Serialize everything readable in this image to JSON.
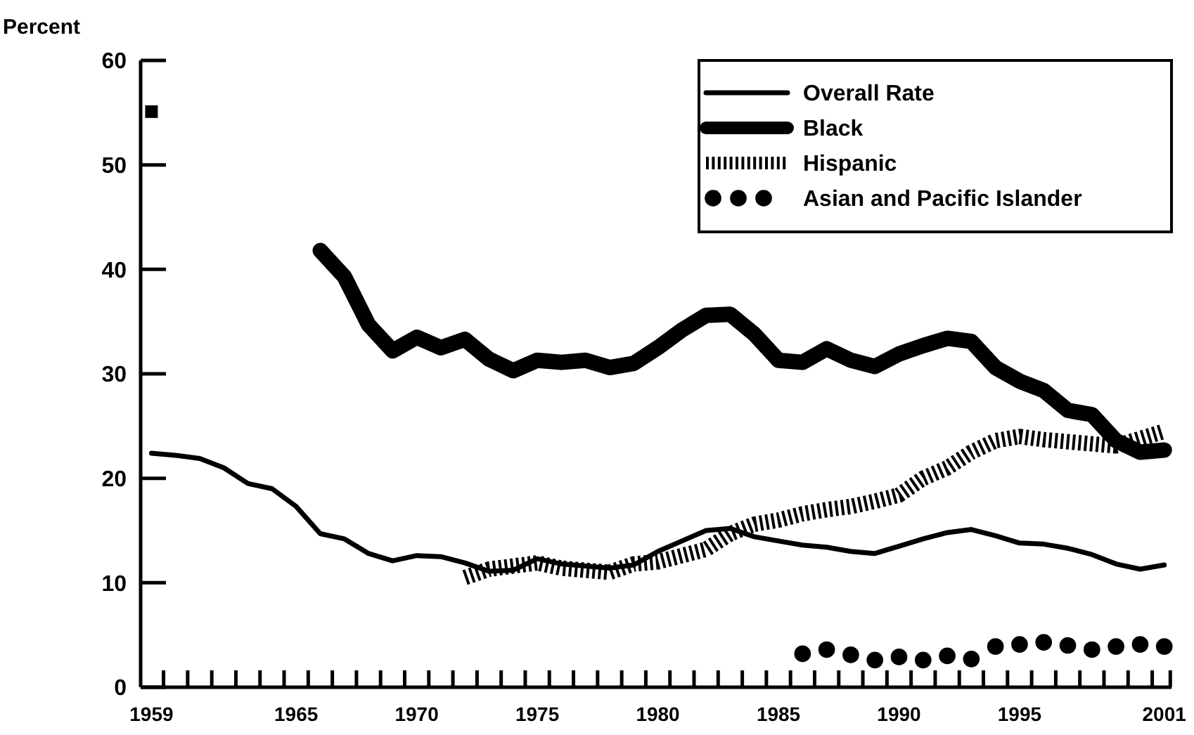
{
  "chart_data": {
    "type": "line",
    "ylabel": "Percent",
    "xlim": [
      1958.55,
      2001.3
    ],
    "ylim": [
      0,
      60
    ],
    "xticks": [
      {
        "value": 1959,
        "label": "1959"
      },
      {
        "value": 1965,
        "label": "1965"
      },
      {
        "value": 1970,
        "label": "1970"
      },
      {
        "value": 1975,
        "label": "1975"
      },
      {
        "value": 1980,
        "label": "1980"
      },
      {
        "value": 1985,
        "label": "1985"
      },
      {
        "value": 1990,
        "label": "1990"
      },
      {
        "value": 1995,
        "label": "1995"
      },
      {
        "value": 2001,
        "label": "2001"
      },
      {
        "value": 1959.5,
        "label": null
      },
      {
        "value": 1960.5,
        "label": null
      },
      {
        "value": 1961.5,
        "label": null
      },
      {
        "value": 1962.5,
        "label": null
      },
      {
        "value": 1963.5,
        "label": null
      },
      {
        "value": 1964.5,
        "label": null
      },
      {
        "value": 1965.5,
        "label": null
      },
      {
        "value": 1966.5,
        "label": null
      },
      {
        "value": 1967.5,
        "label": null
      },
      {
        "value": 1968.5,
        "label": null
      },
      {
        "value": 1969.5,
        "label": null
      },
      {
        "value": 1970.5,
        "label": null
      },
      {
        "value": 1971.5,
        "label": null
      },
      {
        "value": 1972.5,
        "label": null
      },
      {
        "value": 1973.5,
        "label": null
      },
      {
        "value": 1974.5,
        "label": null
      },
      {
        "value": 1975.5,
        "label": null
      },
      {
        "value": 1976.5,
        "label": null
      },
      {
        "value": 1977.5,
        "label": null
      },
      {
        "value": 1978.5,
        "label": null
      },
      {
        "value": 1979.5,
        "label": null
      },
      {
        "value": 1980.5,
        "label": null
      },
      {
        "value": 1981.5,
        "label": null
      },
      {
        "value": 1982.5,
        "label": null
      },
      {
        "value": 1983.5,
        "label": null
      },
      {
        "value": 1984.5,
        "label": null
      },
      {
        "value": 1985.5,
        "label": null
      },
      {
        "value": 1986.5,
        "label": null
      },
      {
        "value": 1987.5,
        "label": null
      },
      {
        "value": 1988.5,
        "label": null
      },
      {
        "value": 1989.5,
        "label": null
      },
      {
        "value": 1990.5,
        "label": null
      },
      {
        "value": 1991.5,
        "label": null
      },
      {
        "value": 1992.5,
        "label": null
      },
      {
        "value": 1993.5,
        "label": null
      },
      {
        "value": 1994.5,
        "label": null
      },
      {
        "value": 1995.5,
        "label": null
      },
      {
        "value": 1996.5,
        "label": null
      },
      {
        "value": 1997.5,
        "label": null
      },
      {
        "value": 1998.5,
        "label": null
      },
      {
        "value": 1999.5,
        "label": null
      },
      {
        "value": 2000.5,
        "label": null
      },
      {
        "value": 2001.25,
        "label": null
      }
    ],
    "yticks": [
      0,
      10,
      20,
      30,
      40,
      50,
      60
    ],
    "grid": false,
    "legend": "top right",
    "series": [
      {
        "name": "Overall Rate",
        "color": "#000000",
        "line_style": "solid",
        "x": [
          1959,
          1960,
          1961,
          1962,
          1963,
          1964,
          1965,
          1966,
          1967,
          1968,
          1969,
          1970,
          1971,
          1972,
          1973,
          1974,
          1975,
          1976,
          1977,
          1978,
          1979,
          1980,
          1981,
          1982,
          1983,
          1984,
          1985,
          1986,
          1987,
          1988,
          1989,
          1990,
          1991,
          1992,
          1993,
          1994,
          1995,
          1996,
          1997,
          1998,
          1999,
          2000,
          2001
        ],
        "values": [
          22.4,
          22.2,
          21.9,
          21.0,
          19.5,
          19.0,
          17.3,
          14.7,
          14.2,
          12.8,
          12.1,
          12.6,
          12.5,
          11.9,
          11.1,
          11.2,
          12.3,
          11.8,
          11.6,
          11.4,
          11.7,
          13.0,
          14.0,
          15.0,
          15.2,
          14.4,
          14.0,
          13.6,
          13.4,
          13.0,
          12.8,
          13.5,
          14.2,
          14.8,
          15.1,
          14.5,
          13.8,
          13.7,
          13.3,
          12.7,
          11.8,
          11.3,
          11.7
        ]
      },
      {
        "name": "Black",
        "color": "#000000",
        "line_style": "solid",
        "x": [
          1959,
          1960,
          1961,
          1962,
          1963,
          1964,
          1965,
          1966,
          1967,
          1968,
          1969,
          1970,
          1971,
          1972,
          1973,
          1974,
          1975,
          1976,
          1977,
          1978,
          1979,
          1980,
          1981,
          1982,
          1983,
          1984,
          1985,
          1986,
          1987,
          1988,
          1989,
          1990,
          1991,
          1992,
          1993,
          1994,
          1995,
          1996,
          1997,
          1998,
          1999,
          2000,
          2001
        ],
        "values": [
          55.1,
          null,
          null,
          null,
          null,
          null,
          null,
          41.8,
          39.3,
          34.7,
          32.2,
          33.5,
          32.5,
          33.3,
          31.4,
          30.3,
          31.3,
          31.1,
          31.3,
          30.6,
          31.0,
          32.5,
          34.2,
          35.6,
          35.7,
          33.8,
          31.3,
          31.1,
          32.4,
          31.3,
          30.7,
          31.9,
          32.7,
          33.4,
          33.1,
          30.6,
          29.3,
          28.4,
          26.5,
          26.1,
          23.6,
          22.5,
          22.7
        ]
      },
      {
        "name": "Hispanic",
        "color": "#000000",
        "line_style": "dashed",
        "x": [
          1972,
          1973,
          1974,
          1975,
          1976,
          1977,
          1978,
          1979,
          1980,
          1981,
          1982,
          1983,
          1984,
          1985,
          1986,
          1987,
          1988,
          1989,
          1990,
          1991,
          1992,
          1993,
          1994,
          1995,
          1996,
          1997,
          1998,
          1999,
          2000,
          2001
        ],
        "values": [
          10.5,
          11.3,
          11.6,
          11.9,
          11.4,
          11.2,
          11.0,
          11.8,
          12.0,
          12.6,
          13.2,
          14.7,
          15.6,
          16.0,
          16.6,
          17.0,
          17.3,
          17.8,
          18.4,
          20.0,
          21.0,
          22.5,
          23.6,
          24.0,
          23.7,
          23.5,
          23.3,
          23.1,
          23.8,
          24.5
        ]
      },
      {
        "name": "Asian and Pacific Islander",
        "color": "#000000",
        "type": "scatter",
        "marker": "circle",
        "x": [
          1986,
          1987,
          1988,
          1989,
          1990,
          1991,
          1992,
          1993,
          1994,
          1995,
          1996,
          1997,
          1998,
          1999,
          2000,
          2001
        ],
        "values": [
          3.2,
          3.6,
          3.1,
          2.6,
          2.9,
          2.6,
          3.0,
          2.7,
          3.9,
          4.1,
          4.3,
          4.0,
          3.6,
          3.9,
          4.1,
          3.9
        ]
      }
    ]
  }
}
